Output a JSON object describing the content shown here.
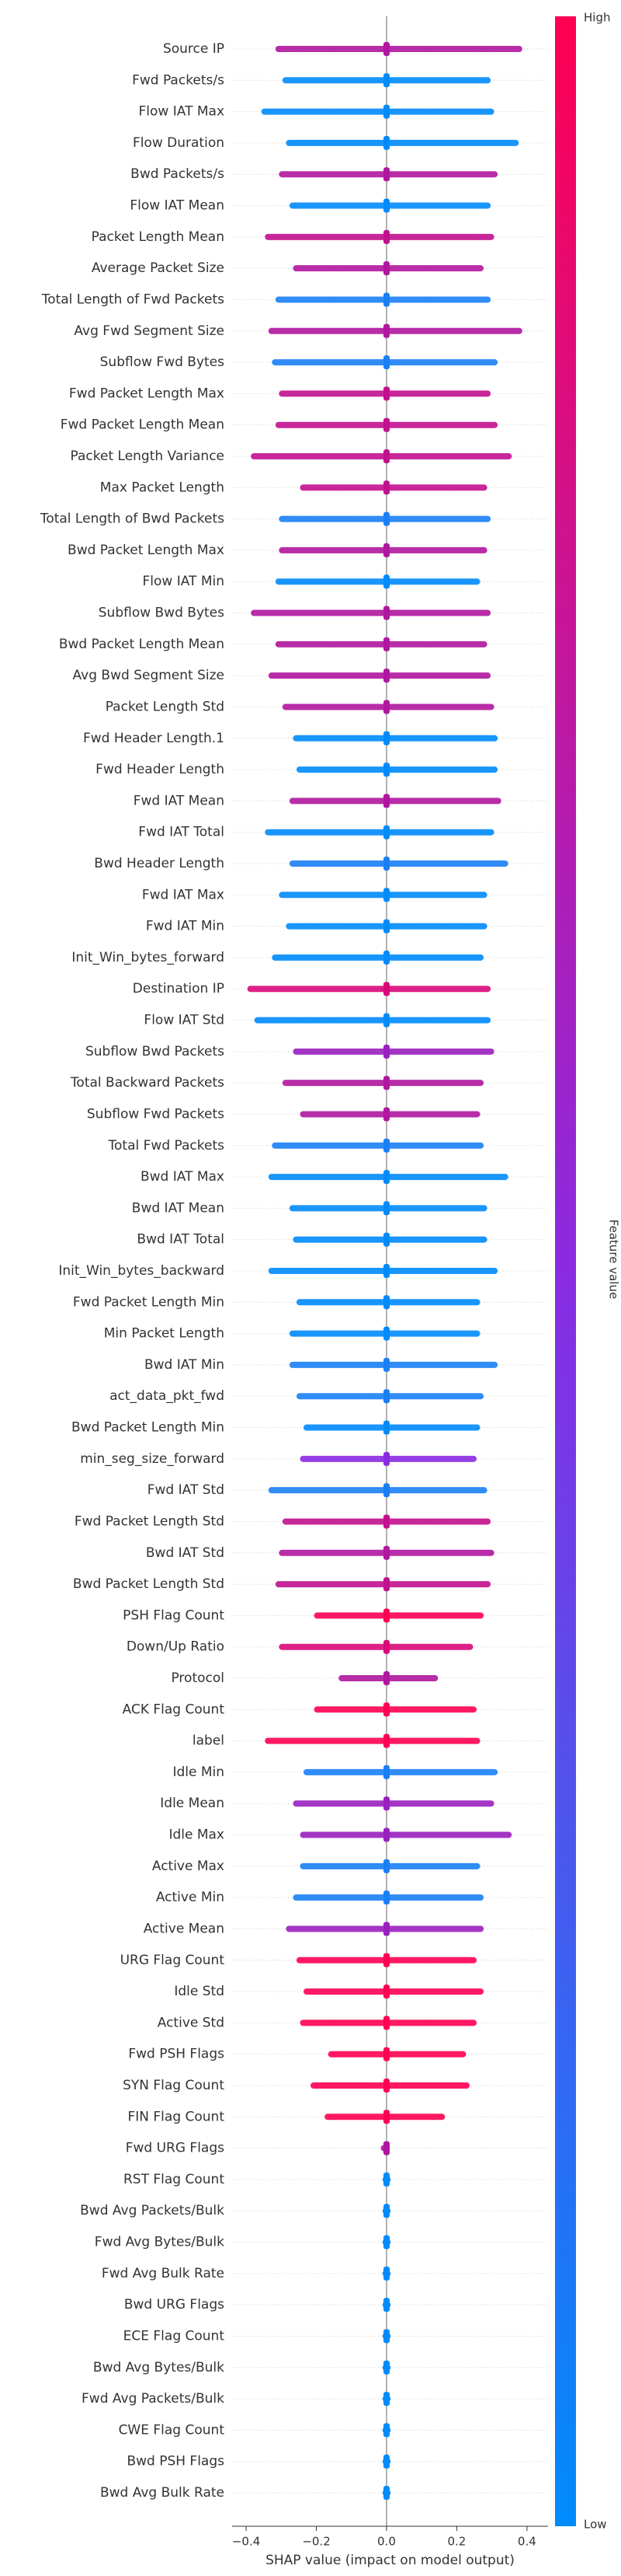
{
  "chart_data": {
    "type": "beeswarm",
    "xlabel": "SHAP value (impact on model output)",
    "xlim": [
      -0.44,
      0.46
    ],
    "xticks": [
      {
        "value": -0.4,
        "label": "−0.4"
      },
      {
        "value": -0.2,
        "label": "−0.2"
      },
      {
        "value": 0,
        "label": "0.0"
      },
      0.2,
      0.4
    ],
    "categories": [
      "Source IP",
      "Fwd Packets/s",
      "Flow IAT Max",
      "Flow Duration",
      "Bwd Packets/s",
      "Flow IAT Mean",
      "Packet Length Mean",
      "Average Packet Size",
      "Total Length of Fwd Packets",
      "Avg Fwd Segment Size",
      "Subflow Fwd Bytes",
      "Fwd Packet Length Max",
      "Fwd Packet Length Mean",
      "Packet Length Variance",
      "Max Packet Length",
      "Total Length of Bwd Packets",
      "Bwd Packet Length Max",
      "Flow IAT Min",
      "Subflow Bwd Bytes",
      "Bwd Packet Length Mean",
      "Avg Bwd Segment Size",
      "Packet Length Std",
      "Fwd Header Length.1",
      "Fwd Header Length",
      "Fwd IAT Mean",
      "Fwd IAT Total",
      "Bwd Header Length",
      "Fwd IAT Max",
      "Fwd IAT Min",
      "Init_Win_bytes_forward",
      "Destination IP",
      "Flow IAT Std",
      "Subflow Bwd Packets",
      "Total Backward Packets",
      "Subflow Fwd Packets",
      "Total Fwd Packets",
      "Bwd IAT Max",
      "Bwd IAT Mean",
      "Bwd IAT Total",
      "Init_Win_bytes_backward",
      "Fwd Packet Length Min",
      "Min Packet Length",
      "Bwd IAT Min",
      "act_data_pkt_fwd",
      "Bwd Packet Length Min",
      "min_seg_size_forward",
      "Fwd IAT Std",
      "Fwd Packet Length Std",
      "Bwd IAT Std",
      "Bwd Packet Length Std",
      "PSH Flag Count",
      "Down/Up Ratio",
      "Protocol",
      "ACK Flag Count",
      "label",
      "Idle Min",
      "Idle Mean",
      "Idle Max",
      "Active Max",
      "Active Min",
      "Active Mean",
      "URG Flag Count",
      "Idle Std",
      "Active Std",
      "Fwd PSH Flags",
      "SYN Flag Count",
      "FIN Flag Count",
      "Fwd URG Flags",
      "RST Flag Count",
      "Bwd Avg Packets/Bulk",
      "Fwd Avg Bytes/Bulk",
      "Fwd Avg Bulk Rate",
      "Bwd URG Flags",
      "ECE Flag Count",
      "Bwd Avg Bytes/Bulk",
      "Fwd Avg Packets/Bulk",
      "CWE Flag Count",
      "Bwd PSH Flags",
      "Bwd Avg Bulk Rate"
    ],
    "min": [
      -0.31,
      -0.29,
      -0.35,
      -0.28,
      -0.3,
      -0.27,
      -0.34,
      -0.26,
      -0.31,
      -0.33,
      -0.32,
      -0.3,
      -0.31,
      -0.38,
      -0.24,
      -0.3,
      -0.3,
      -0.31,
      -0.38,
      -0.31,
      -0.33,
      -0.29,
      -0.26,
      -0.25,
      -0.27,
      -0.34,
      -0.27,
      -0.3,
      -0.28,
      -0.32,
      -0.39,
      -0.37,
      -0.26,
      -0.29,
      -0.24,
      -0.32,
      -0.33,
      -0.27,
      -0.26,
      -0.33,
      -0.25,
      -0.27,
      -0.27,
      -0.25,
      -0.23,
      -0.24,
      -0.33,
      -0.29,
      -0.3,
      -0.31,
      -0.2,
      -0.3,
      -0.13,
      -0.2,
      -0.34,
      -0.23,
      -0.26,
      -0.24,
      -0.24,
      -0.26,
      -0.28,
      -0.25,
      -0.23,
      -0.24,
      -0.16,
      -0.21,
      -0.17,
      -0.01,
      -0.005,
      -0.005,
      -0.005,
      -0.005,
      -0.005,
      -0.005,
      -0.005,
      -0.005,
      -0.005,
      -0.005,
      -0.005
    ],
    "max": [
      0.38,
      0.29,
      0.3,
      0.37,
      0.31,
      0.29,
      0.3,
      0.27,
      0.29,
      0.38,
      0.31,
      0.29,
      0.31,
      0.35,
      0.28,
      0.29,
      0.28,
      0.26,
      0.29,
      0.28,
      0.29,
      0.3,
      0.31,
      0.31,
      0.32,
      0.3,
      0.34,
      0.28,
      0.28,
      0.27,
      0.29,
      0.29,
      0.3,
      0.27,
      0.26,
      0.27,
      0.34,
      0.28,
      0.28,
      0.31,
      0.26,
      0.26,
      0.31,
      0.27,
      0.26,
      0.25,
      0.28,
      0.29,
      0.3,
      0.29,
      0.27,
      0.24,
      0.14,
      0.25,
      0.26,
      0.31,
      0.3,
      0.35,
      0.26,
      0.27,
      0.27,
      0.25,
      0.27,
      0.25,
      0.22,
      0.23,
      0.16,
      0,
      0.005,
      0.005,
      0.005,
      0.005,
      0.005,
      0.005,
      0.005,
      0.005,
      0.005,
      0.005,
      0.005
    ],
    "colors": [
      "#b0169f",
      "#008bfb",
      "#008bfb",
      "#008bfb",
      "#b0169f",
      "#008bfb",
      "#c2108f",
      "#b0169f",
      "#1a7ff5",
      "#b0169f",
      "#1a7ff5",
      "#c2108f",
      "#c2108f",
      "#c2108f",
      "#c2108f",
      "#1a7ff5",
      "#b0169f",
      "#008bfb",
      "#b0169f",
      "#b0169f",
      "#b0169f",
      "#b0169f",
      "#008bfb",
      "#008bfb",
      "#b0169f",
      "#008bfb",
      "#1a7ff5",
      "#008bfb",
      "#008bfb",
      "#008bfb",
      "#d9097a",
      "#008bfb",
      "#9a20c0",
      "#b0169f",
      "#b0169f",
      "#1a7ff5",
      "#008bfb",
      "#008bfb",
      "#008bfb",
      "#008bfb",
      "#008bfb",
      "#008bfb",
      "#1a7ff5",
      "#1a7ff5",
      "#008bfb",
      "#8a2be2",
      "#1a7ff5",
      "#c2108f",
      "#b0169f",
      "#c2108f",
      "#ff0052",
      "#d9097a",
      "#b0169f",
      "#ff0052",
      "#ff0052",
      "#1a7ff5",
      "#9a20c0",
      "#9a20c0",
      "#1a7ff5",
      "#1a7ff5",
      "#9a20c0",
      "#ff0052",
      "#ff0052",
      "#ff0052",
      "#ff0052",
      "#ff0052",
      "#ff0052",
      "#b0169f",
      "#008bfb",
      "#008bfb",
      "#008bfb",
      "#008bfb",
      "#008bfb",
      "#008bfb",
      "#008bfb",
      "#008bfb",
      "#008bfb",
      "#008bfb",
      "#008bfb"
    ],
    "colorbar": {
      "label": "Feature value",
      "high": "High",
      "low": "Low",
      "high_color": "#ff0052",
      "mid_color": "#8a2be2",
      "low_color": "#008bfb"
    }
  }
}
